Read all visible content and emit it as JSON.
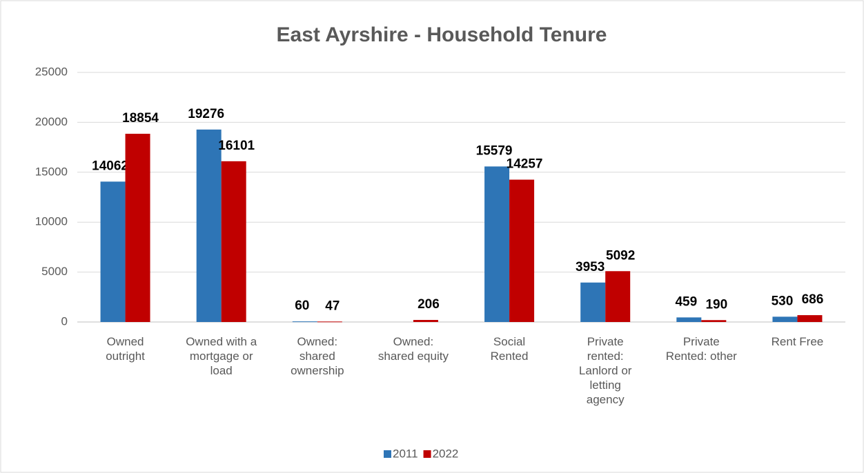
{
  "chart_data": {
    "type": "bar",
    "title": "East Ayrshire - Household Tenure",
    "categories": [
      "Owned outright",
      "Owned with a mortgage or load",
      "Owned: shared ownership",
      "Owned: shared equity",
      "Social Rented",
      "Private rented: Lanlord or letting agency",
      "Private Rented: other",
      "Rent Free"
    ],
    "series": [
      {
        "name": "2011",
        "color": "#2e75b6",
        "values": [
          14062,
          19276,
          60,
          null,
          15579,
          3953,
          459,
          530
        ]
      },
      {
        "name": "2022",
        "color": "#c00000",
        "values": [
          18854,
          16101,
          47,
          206,
          14257,
          5092,
          190,
          686
        ]
      }
    ],
    "ylim": [
      0,
      25000
    ],
    "yticks": [
      0,
      5000,
      10000,
      15000,
      20000,
      25000
    ],
    "grid": true,
    "legend": "bottom"
  }
}
